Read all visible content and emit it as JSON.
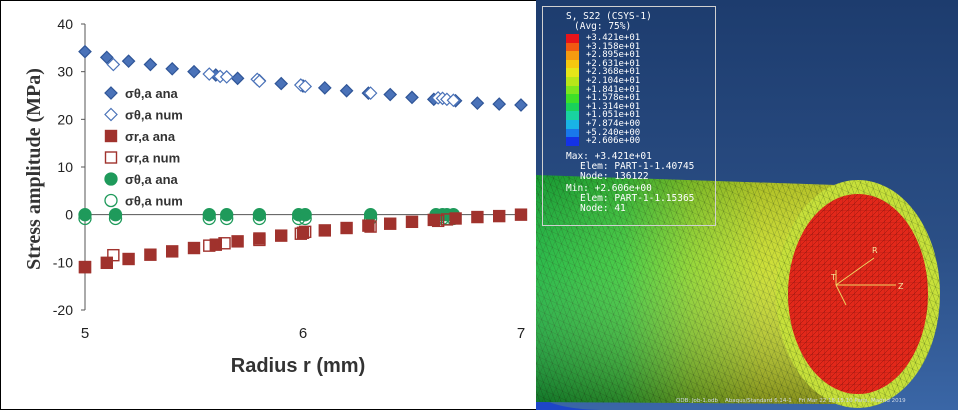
{
  "chart_data": {
    "type": "scatter",
    "xlabel": "Radius r (mm)",
    "ylabel": "Stress amplitude (MPa)",
    "xlim": [
      5,
      7
    ],
    "ylim": [
      -20,
      40
    ],
    "x_ticks": [
      "5",
      "6",
      "7"
    ],
    "y_ticks": [
      "-20",
      "-10",
      "0",
      "10",
      "20",
      "30",
      "40"
    ],
    "grid": false,
    "legend_position": "left",
    "series": [
      {
        "name": "σθ,a ana",
        "color": "#4a72b8",
        "marker": "diamond-filled",
        "x": [
          5.0,
          5.1,
          5.2,
          5.3,
          5.4,
          5.5,
          5.6,
          5.7,
          5.8,
          5.9,
          6.0,
          6.1,
          6.2,
          6.3,
          6.4,
          6.5,
          6.6,
          6.7,
          6.8,
          6.9,
          7.0
        ],
        "y": [
          34.2,
          33.0,
          32.2,
          31.5,
          30.6,
          30.0,
          29.3,
          28.6,
          28.1,
          27.5,
          27.0,
          26.6,
          26.0,
          25.5,
          25.2,
          24.6,
          24.2,
          23.9,
          23.4,
          23.2,
          23.0
        ]
      },
      {
        "name": "σθ,a num",
        "color": "#4a72b8",
        "marker": "diamond-open",
        "x": [
          5.13,
          5.57,
          5.62,
          5.65,
          5.79,
          5.8,
          5.99,
          6.01,
          6.31,
          6.62,
          6.64,
          6.66,
          6.69
        ],
        "y": [
          31.5,
          29.5,
          29.0,
          28.9,
          28.4,
          28.0,
          27.2,
          26.9,
          25.5,
          24.5,
          24.4,
          24.2,
          24.0
        ]
      },
      {
        "name": "σr,a ana",
        "color": "#a0322d",
        "marker": "square-filled",
        "x": [
          5.0,
          5.1,
          5.2,
          5.3,
          5.4,
          5.5,
          5.6,
          5.7,
          5.8,
          5.9,
          6.0,
          6.1,
          6.2,
          6.3,
          6.4,
          6.5,
          6.6,
          6.7,
          6.8,
          6.9,
          7.0
        ],
        "y": [
          -11.0,
          -10.1,
          -9.3,
          -8.4,
          -7.7,
          -7.0,
          -6.3,
          -5.6,
          -5.0,
          -4.4,
          -3.8,
          -3.3,
          -2.8,
          -2.3,
          -1.9,
          -1.5,
          -1.1,
          -0.8,
          -0.5,
          -0.3,
          0.0
        ]
      },
      {
        "name": "σr,a num",
        "color": "#a0322d",
        "marker": "square-open",
        "x": [
          5.0,
          5.13,
          5.57,
          5.64,
          5.8,
          5.99,
          6.01,
          6.31,
          6.62,
          6.66
        ],
        "y": [
          -11.0,
          -8.5,
          -6.5,
          -6.0,
          -5.3,
          -4.0,
          -3.6,
          -2.5,
          -1.3,
          -1.0
        ]
      },
      {
        "name": "σθ,a ana",
        "color": "#1f9a5b",
        "marker": "circle-filled",
        "x": [
          5.0,
          5.14,
          5.57,
          5.65,
          5.8,
          5.98,
          6.01,
          6.31,
          6.61,
          6.64,
          6.66,
          6.69
        ],
        "y": [
          0,
          0,
          0,
          0,
          0,
          0,
          0,
          0,
          0,
          0,
          0,
          0
        ]
      },
      {
        "name": "σθ,a num",
        "color": "#1f9a5b",
        "marker": "circle-open",
        "x": [
          5.0,
          5.14,
          5.57,
          5.65,
          5.8,
          5.98,
          6.01,
          6.31,
          6.61,
          6.64,
          6.66,
          6.69
        ],
        "y": [
          -0.8,
          -0.8,
          -0.8,
          -0.8,
          -0.8,
          -0.8,
          -0.8,
          -0.8,
          -0.8,
          -0.8,
          -0.8,
          -0.8
        ]
      }
    ]
  },
  "fem": {
    "header_line1": "S, S22 (CSYS-1)",
    "header_line2": "(Avg: 75%)",
    "legend_values": [
      "+3.421e+01",
      "+3.158e+01",
      "+2.895e+01",
      "+2.631e+01",
      "+2.368e+01",
      "+2.104e+01",
      "+1.841e+01",
      "+1.578e+01",
      "+1.314e+01",
      "+1.051e+01",
      "+7.874e+00",
      "+5.240e+00",
      "+2.606e+00"
    ],
    "legend_colors": [
      "#e8141a",
      "#f05a12",
      "#f59a10",
      "#f5c80f",
      "#e6e619",
      "#b8e619",
      "#7de61e",
      "#3ee028",
      "#19d25a",
      "#19d2a0",
      "#19b4e6",
      "#1978eb",
      "#1432e6"
    ],
    "max_line": "Max: +3.421e+01",
    "max_elem": "Elem: PART-1-1.40745",
    "max_node": "Node: 136122",
    "min_line": "Min: +2.606e+00",
    "min_elem": "Elem: PART-1-1.15365",
    "min_node": "Node: 41",
    "axis_r": "R",
    "axis_t": "T",
    "axis_z": "Z",
    "footer_odb": "ODB: Job-1.odb    Abaqus/Standard 6.14-1    Fri Mar 22 18:15:10 Paris, Madrid 2019"
  }
}
